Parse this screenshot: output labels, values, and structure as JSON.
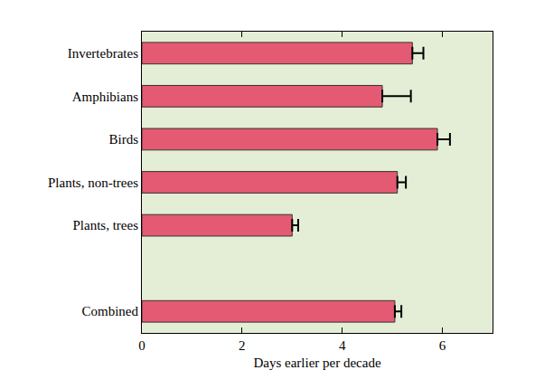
{
  "chart_data": {
    "type": "bar",
    "orientation": "horizontal",
    "categories": [
      "Invertebrates",
      "Amphibians",
      "Birds",
      "Plants, non-trees",
      "Plants, trees",
      null,
      "Combined"
    ],
    "values": [
      5.4,
      4.8,
      5.9,
      5.1,
      3.0,
      null,
      5.05
    ],
    "errors": [
      0.22,
      0.57,
      0.25,
      0.17,
      0.12,
      null,
      0.13
    ],
    "color": "#e45a72",
    "x_label": "Days earlier per decade",
    "xlim": [
      0,
      7
    ],
    "xticks": [
      0,
      2,
      4,
      6
    ],
    "grid": false
  }
}
